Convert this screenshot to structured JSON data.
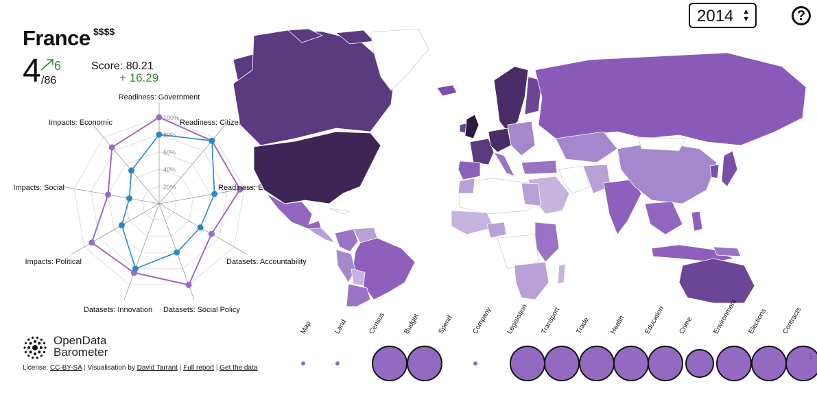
{
  "country": {
    "name": "France",
    "cost": "$$$$"
  },
  "rank": {
    "value": "4",
    "total": "/86",
    "change": "6"
  },
  "score": {
    "label": "Score: 80.21",
    "change": "+ 16.29"
  },
  "year_select": {
    "value": "2014",
    "arrows": "▲▼"
  },
  "help": {
    "label": "?"
  },
  "radar": {
    "axes": [
      "Readiness: Government",
      "Readiness: Citizens",
      "Readiness: Entrepreneurs and business",
      "Datasets: Accountability",
      "Datasets: Social Policy",
      "Datasets: Innovation",
      "Impacts: Political",
      "Impacts: Social",
      "Impacts: Economic"
    ],
    "axis_labels_shown": [
      "Readiness: Government",
      "Readiness: Citizens",
      "Readiness: Entrepreneurs and business",
      "Datasets: Accountability",
      "Datasets: Social Policy",
      "Datasets: Innovation",
      "Impacts: Political",
      "Impacts: Social",
      "Impacts: Economic"
    ],
    "ticks": [
      "20%",
      "40%",
      "60%",
      "80%",
      "100%"
    ],
    "series": [
      {
        "values": [
          100,
          95,
          95,
          70,
          100,
          85,
          90,
          60,
          85
        ],
        "color": "#9b6bc7"
      },
      {
        "values": [
          80,
          95,
          65,
          55,
          60,
          80,
          50,
          35,
          50
        ],
        "color": "#2f86c4"
      }
    ]
  },
  "sectors": [
    {
      "label": "Map",
      "level": 0.12
    },
    {
      "label": "Land",
      "level": 0.12
    },
    {
      "label": "Census",
      "level": 1.0
    },
    {
      "label": "Budget",
      "level": 1.0
    },
    {
      "label": "Spend",
      "level": 0.04
    },
    {
      "label": "Company",
      "level": 0.12
    },
    {
      "label": "Legislation",
      "level": 1.0
    },
    {
      "label": "Transport",
      "level": 1.0
    },
    {
      "label": "Trade",
      "level": 1.0
    },
    {
      "label": "Health",
      "level": 1.0
    },
    {
      "label": "Education",
      "level": 1.0
    },
    {
      "label": "Crime",
      "level": 0.8
    },
    {
      "label": "Environment",
      "level": 1.0
    },
    {
      "label": "Elections",
      "level": 1.0
    },
    {
      "label": "Contracts",
      "level": 1.0
    }
  ],
  "logo": {
    "line1": "OpenData",
    "line2": "Barometer"
  },
  "footer": {
    "license_label": "License:",
    "license_link": "CC-BY-SA",
    "vis_label": "Visualisation by",
    "vis_link": "David Tarrant",
    "report_link": "Full report",
    "data_link": "Get the data"
  },
  "colors": {
    "accent": "#9469c2",
    "dark": "#3e2556",
    "positive": "#2a8a2a",
    "secondary": "#2f86c4"
  }
}
